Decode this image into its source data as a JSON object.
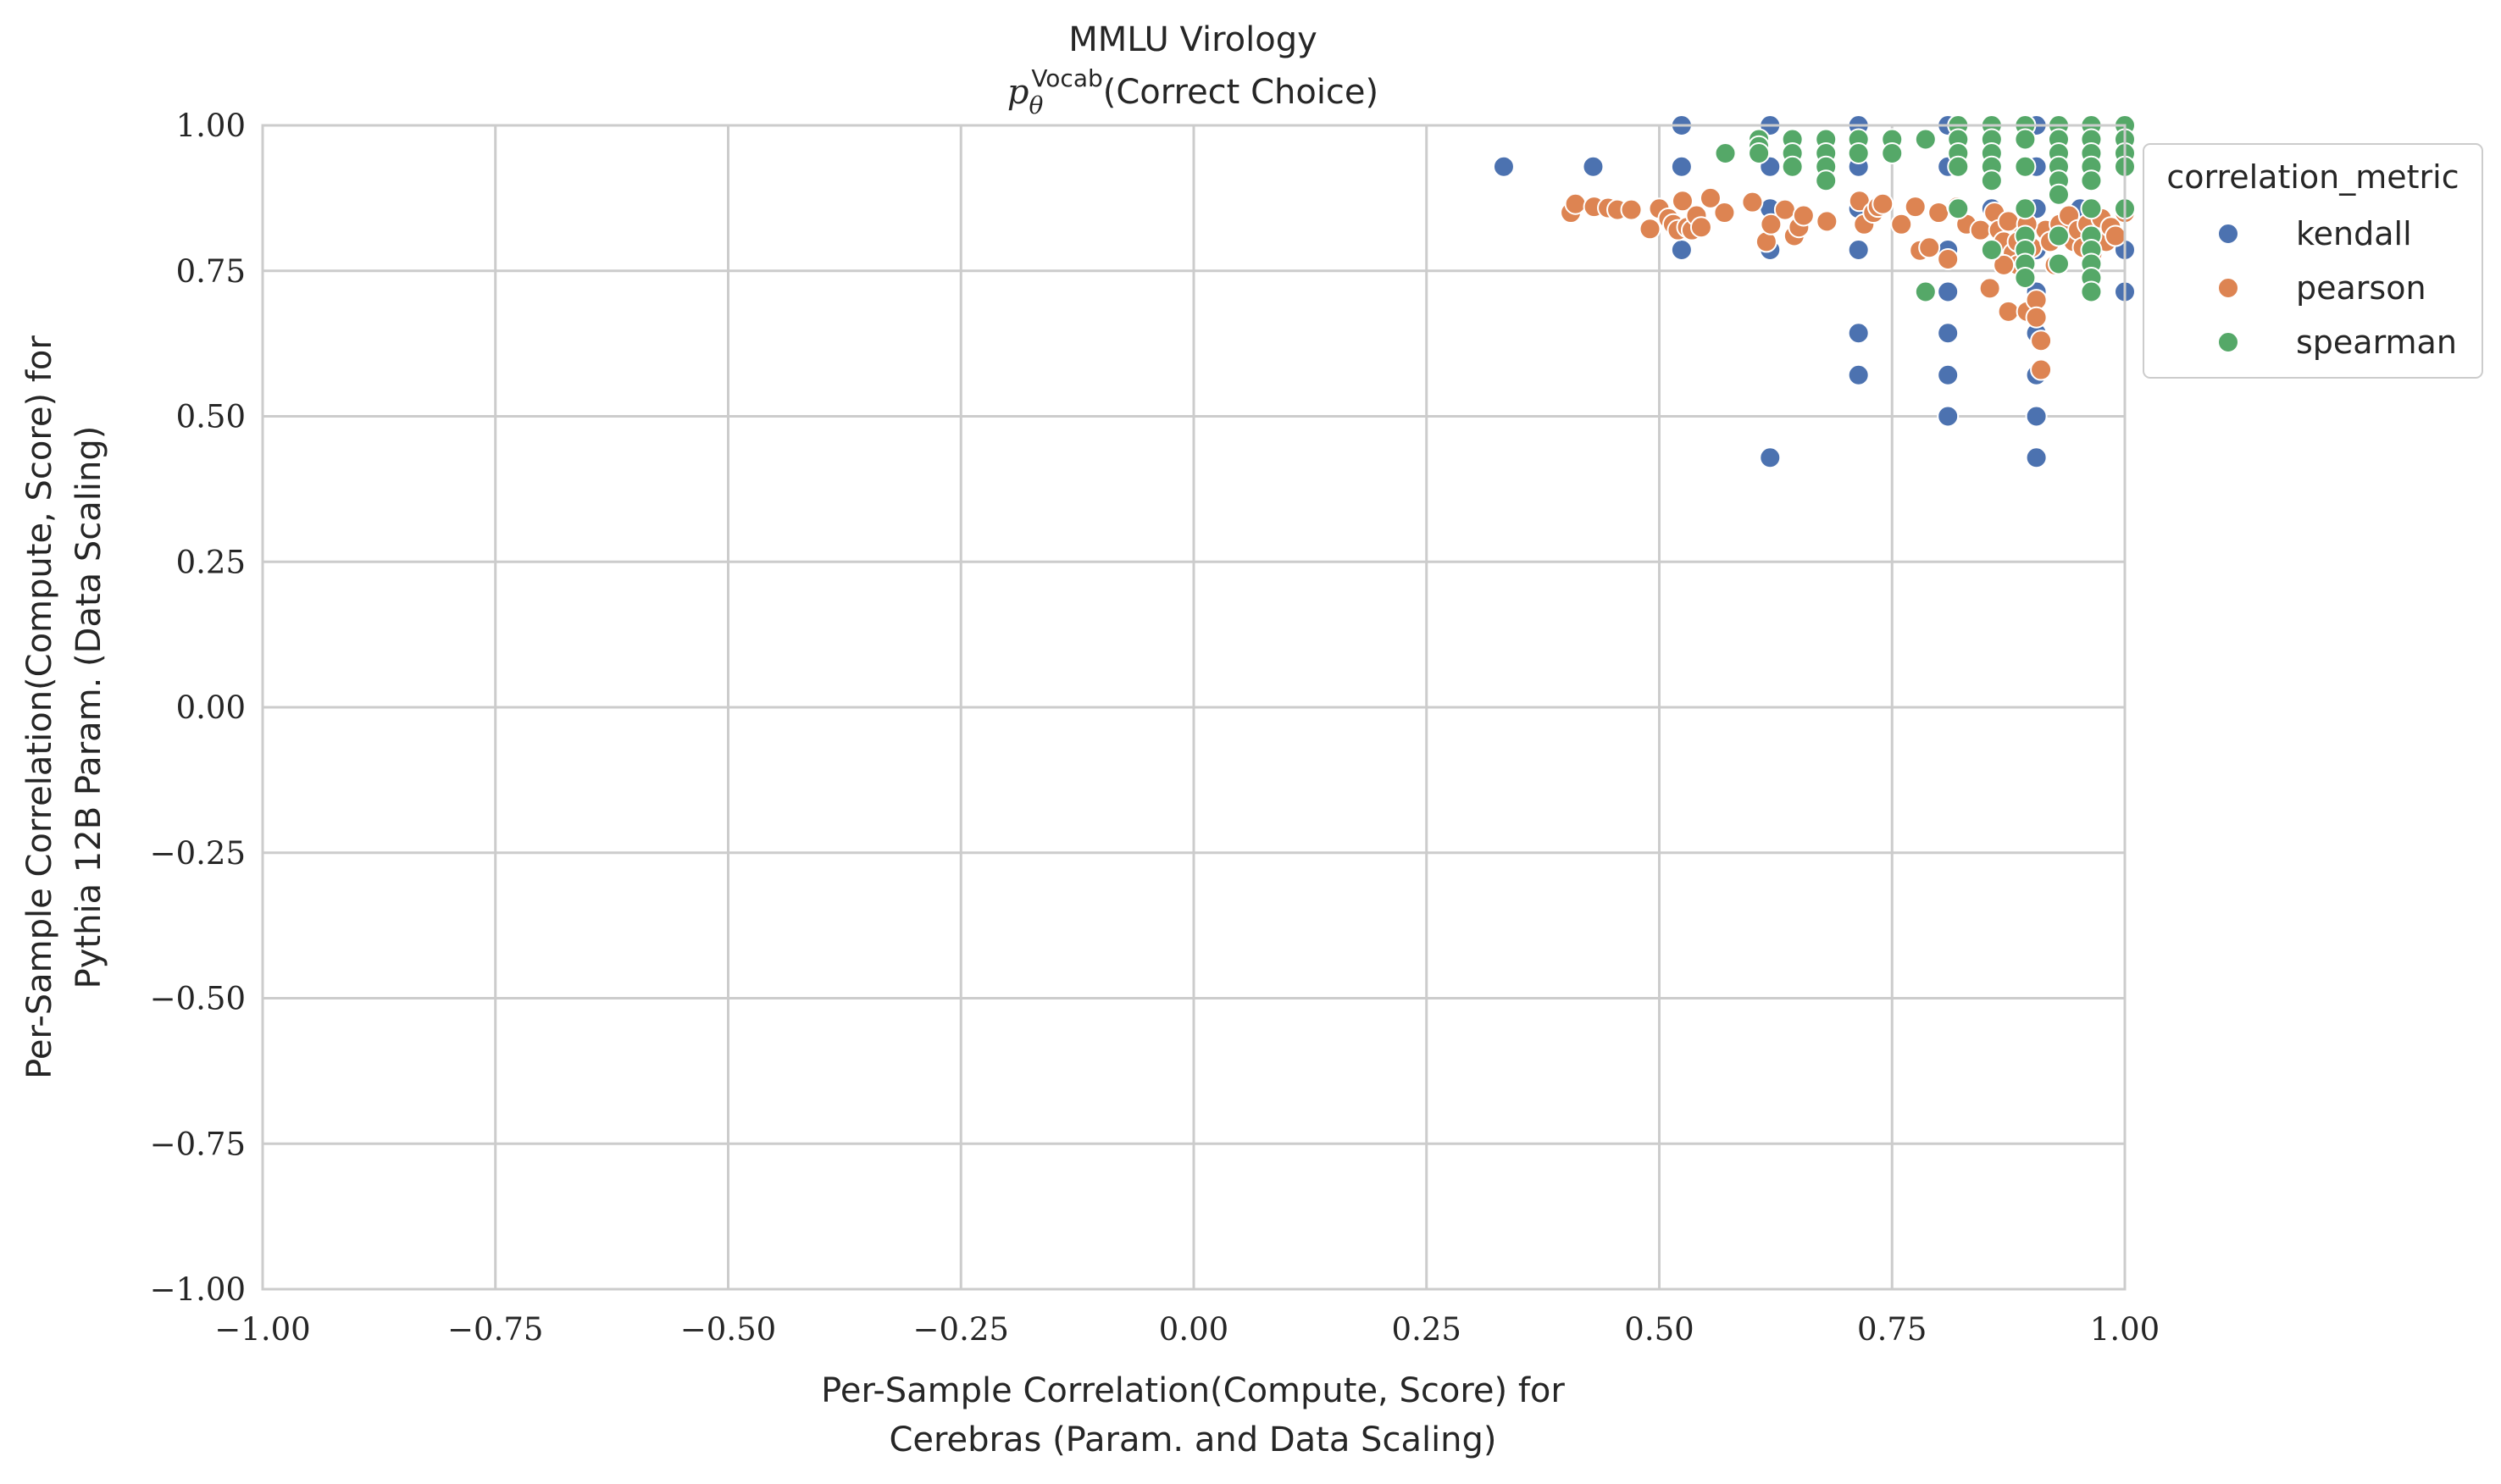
{
  "chart_data": {
    "type": "scatter",
    "title": "MMLU Virology",
    "subtitle_symbol": "p",
    "subtitle_subscript": "θ",
    "subtitle_superscript": "Vocab",
    "subtitle_rest": "(Correct Choice)",
    "xlabel_line1": "Per-Sample Correlation(Compute, Score) for",
    "xlabel_line2": "Cerebras (Param. and Data Scaling)",
    "ylabel_line1": "Per-Sample Correlation(Compute, Score) for",
    "ylabel_line2": "Pythia 12B Param. (Data Scaling)",
    "xlim": [
      -1.0,
      1.0
    ],
    "ylim": [
      -1.0,
      1.0
    ],
    "xticks": [
      -1.0,
      -0.75,
      -0.5,
      -0.25,
      0.0,
      0.25,
      0.5,
      0.75,
      1.0
    ],
    "yticks": [
      -1.0,
      -0.75,
      -0.5,
      -0.25,
      0.0,
      0.25,
      0.5,
      0.75,
      1.0
    ],
    "xtick_labels": [
      "−1.00",
      "−0.75",
      "−0.50",
      "−0.25",
      "0.00",
      "0.25",
      "0.50",
      "0.75",
      "1.00"
    ],
    "ytick_labels": [
      "−1.00",
      "−0.75",
      "−0.50",
      "−0.25",
      "0.00",
      "0.25",
      "0.50",
      "0.75",
      "1.00"
    ],
    "grid": true,
    "legend": {
      "title": "correlation_metric",
      "placement": "outside-top-right"
    },
    "series": [
      {
        "name": "kendall",
        "color": "#4c72b0",
        "points": [
          [
            0.333,
            0.929
          ],
          [
            0.429,
            0.929
          ],
          [
            0.524,
            1.0
          ],
          [
            0.524,
            0.929
          ],
          [
            0.524,
            0.786
          ],
          [
            0.619,
            1.0
          ],
          [
            0.619,
            0.929
          ],
          [
            0.619,
            0.857
          ],
          [
            0.619,
            0.786
          ],
          [
            0.619,
            0.429
          ],
          [
            0.714,
            1.0
          ],
          [
            0.714,
            0.929
          ],
          [
            0.714,
            0.857
          ],
          [
            0.714,
            0.786
          ],
          [
            0.714,
            0.643
          ],
          [
            0.714,
            0.571
          ],
          [
            0.81,
            1.0
          ],
          [
            0.81,
            0.929
          ],
          [
            0.81,
            0.786
          ],
          [
            0.81,
            0.714
          ],
          [
            0.81,
            0.643
          ],
          [
            0.81,
            0.571
          ],
          [
            0.81,
            0.5
          ],
          [
            0.905,
            1.0
          ],
          [
            0.905,
            0.929
          ],
          [
            0.905,
            0.857
          ],
          [
            0.905,
            0.786
          ],
          [
            0.905,
            0.714
          ],
          [
            0.905,
            0.643
          ],
          [
            0.905,
            0.571
          ],
          [
            0.905,
            0.5
          ],
          [
            0.905,
            0.429
          ],
          [
            1.0,
            1.0
          ],
          [
            1.0,
            0.929
          ],
          [
            1.0,
            0.857
          ],
          [
            1.0,
            0.786
          ],
          [
            1.0,
            0.714
          ],
          [
            0.952,
            0.857
          ],
          [
            0.857,
            0.857
          ]
        ]
      },
      {
        "name": "pearson",
        "color": "#dd8452",
        "points": [
          [
            0.405,
            0.85
          ],
          [
            0.41,
            0.865
          ],
          [
            0.43,
            0.86
          ],
          [
            0.445,
            0.858
          ],
          [
            0.455,
            0.855
          ],
          [
            0.47,
            0.855
          ],
          [
            0.49,
            0.822
          ],
          [
            0.5,
            0.857
          ],
          [
            0.51,
            0.84
          ],
          [
            0.515,
            0.83
          ],
          [
            0.52,
            0.82
          ],
          [
            0.525,
            0.87
          ],
          [
            0.53,
            0.825
          ],
          [
            0.535,
            0.82
          ],
          [
            0.54,
            0.845
          ],
          [
            0.545,
            0.825
          ],
          [
            0.555,
            0.875
          ],
          [
            0.57,
            0.85
          ],
          [
            0.6,
            0.868
          ],
          [
            0.615,
            0.8
          ],
          [
            0.62,
            0.83
          ],
          [
            0.635,
            0.855
          ],
          [
            0.645,
            0.81
          ],
          [
            0.65,
            0.825
          ],
          [
            0.655,
            0.845
          ],
          [
            0.68,
            0.835
          ],
          [
            0.715,
            0.87
          ],
          [
            0.72,
            0.83
          ],
          [
            0.73,
            0.85
          ],
          [
            0.735,
            0.86
          ],
          [
            0.74,
            0.865
          ],
          [
            0.76,
            0.83
          ],
          [
            0.775,
            0.86
          ],
          [
            0.78,
            0.785
          ],
          [
            0.79,
            0.79
          ],
          [
            0.8,
            0.85
          ],
          [
            0.81,
            0.77
          ],
          [
            0.82,
            0.86
          ],
          [
            0.83,
            0.83
          ],
          [
            0.845,
            0.82
          ],
          [
            0.855,
            0.72
          ],
          [
            0.86,
            0.85
          ],
          [
            0.865,
            0.82
          ],
          [
            0.87,
            0.8
          ],
          [
            0.875,
            0.835
          ],
          [
            0.875,
            0.68
          ],
          [
            0.88,
            0.78
          ],
          [
            0.885,
            0.76
          ],
          [
            0.89,
            0.81
          ],
          [
            0.895,
            0.68
          ],
          [
            0.9,
            0.79
          ],
          [
            0.905,
            0.7
          ],
          [
            0.905,
            0.67
          ],
          [
            0.91,
            0.63
          ],
          [
            0.91,
            0.58
          ],
          [
            0.915,
            0.82
          ],
          [
            0.92,
            0.8
          ],
          [
            0.93,
            0.83
          ],
          [
            0.94,
            0.845
          ],
          [
            0.945,
            0.8
          ],
          [
            0.95,
            0.82
          ],
          [
            0.96,
            0.83
          ],
          [
            0.965,
            0.78
          ],
          [
            0.97,
            0.81
          ],
          [
            0.975,
            0.84
          ],
          [
            0.98,
            0.8
          ],
          [
            0.985,
            0.825
          ],
          [
            0.99,
            0.81
          ],
          [
            1.0,
            0.85
          ],
          [
            0.895,
            0.83
          ],
          [
            0.885,
            0.8
          ],
          [
            0.925,
            0.76
          ],
          [
            0.955,
            0.79
          ],
          [
            0.87,
            0.76
          ]
        ]
      },
      {
        "name": "spearman",
        "color": "#55a868",
        "points": [
          [
            0.571,
            0.952
          ],
          [
            0.607,
            0.976
          ],
          [
            0.607,
            0.964
          ],
          [
            0.607,
            0.952
          ],
          [
            0.643,
            0.976
          ],
          [
            0.643,
            0.952
          ],
          [
            0.643,
            0.929
          ],
          [
            0.679,
            0.976
          ],
          [
            0.679,
            0.952
          ],
          [
            0.679,
            0.929
          ],
          [
            0.679,
            0.905
          ],
          [
            0.714,
            0.976
          ],
          [
            0.714,
            0.952
          ],
          [
            0.75,
            0.976
          ],
          [
            0.75,
            0.952
          ],
          [
            0.786,
            0.976
          ],
          [
            0.786,
            0.714
          ],
          [
            0.821,
            1.0
          ],
          [
            0.821,
            0.976
          ],
          [
            0.821,
            0.952
          ],
          [
            0.821,
            0.929
          ],
          [
            0.821,
            0.857
          ],
          [
            0.857,
            1.0
          ],
          [
            0.857,
            0.976
          ],
          [
            0.857,
            0.952
          ],
          [
            0.857,
            0.929
          ],
          [
            0.857,
            0.905
          ],
          [
            0.857,
            0.786
          ],
          [
            0.893,
            1.0
          ],
          [
            0.893,
            0.976
          ],
          [
            0.893,
            0.929
          ],
          [
            0.893,
            0.857
          ],
          [
            0.893,
            0.81
          ],
          [
            0.893,
            0.786
          ],
          [
            0.893,
            0.762
          ],
          [
            0.893,
            0.738
          ],
          [
            0.929,
            1.0
          ],
          [
            0.929,
            0.976
          ],
          [
            0.929,
            0.952
          ],
          [
            0.929,
            0.929
          ],
          [
            0.929,
            0.905
          ],
          [
            0.929,
            0.881
          ],
          [
            0.929,
            0.81
          ],
          [
            0.929,
            0.762
          ],
          [
            0.964,
            1.0
          ],
          [
            0.964,
            0.976
          ],
          [
            0.964,
            0.952
          ],
          [
            0.964,
            0.929
          ],
          [
            0.964,
            0.905
          ],
          [
            0.964,
            0.857
          ],
          [
            0.964,
            0.81
          ],
          [
            0.964,
            0.786
          ],
          [
            0.964,
            0.762
          ],
          [
            0.964,
            0.738
          ],
          [
            0.964,
            0.714
          ],
          [
            1.0,
            1.0
          ],
          [
            1.0,
            0.976
          ],
          [
            1.0,
            0.952
          ],
          [
            1.0,
            0.929
          ],
          [
            1.0,
            0.857
          ]
        ]
      }
    ]
  }
}
